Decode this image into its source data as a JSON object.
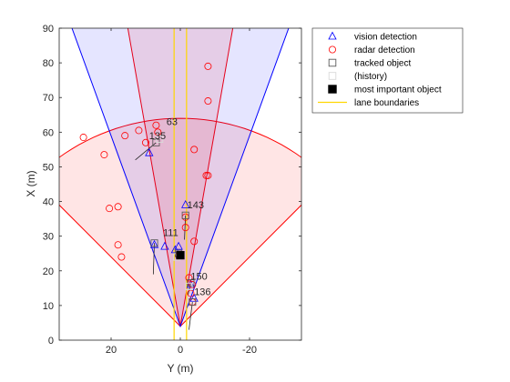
{
  "chart_data": {
    "type": "scatter",
    "xlabel": "Y (m)",
    "ylabel": "X (m)",
    "xlim": [
      35,
      -35
    ],
    "ylim": [
      0,
      90
    ],
    "x_axis_direction": "reversed",
    "xticks": [
      20,
      0,
      -20
    ],
    "xtick_labels": [
      "20",
      "0",
      "-20"
    ],
    "yticks": [
      0,
      10,
      20,
      30,
      40,
      50,
      60,
      70,
      80,
      90
    ],
    "ytick_labels": [
      "0",
      "10",
      "20",
      "30",
      "40",
      "50",
      "60",
      "70",
      "80",
      "90"
    ],
    "grid": false,
    "legend_position": "outside-top-right",
    "sensor_origin": [
      0,
      4
    ],
    "coverage_areas": [
      {
        "sensor": "radar",
        "half_angle_deg": 45,
        "range": 60,
        "color": "#ff0000"
      },
      {
        "sensor": "radar",
        "half_angle_deg": 10,
        "range": 100,
        "color": "#ff0000"
      },
      {
        "sensor": "vision",
        "half_angle_deg": 20,
        "range": 100,
        "color": "#0000ff"
      }
    ],
    "lane_boundaries": [
      {
        "y": 1.8,
        "x_range": [
          0,
          90
        ]
      },
      {
        "y": -1.8,
        "x_range": [
          0,
          90
        ]
      }
    ],
    "series": [
      {
        "name": "vision detection",
        "marker": "triangle",
        "color": "#0000ff",
        "points": [
          [
            9,
            54
          ],
          [
            -1.5,
            39
          ],
          [
            0.5,
            27
          ],
          [
            4.5,
            27
          ],
          [
            1.5,
            26
          ],
          [
            7.5,
            27.5
          ],
          [
            -3,
            16
          ],
          [
            -4,
            12
          ]
        ]
      },
      {
        "name": "radar detection",
        "marker": "circle",
        "color": "#ff0000",
        "points": [
          [
            28,
            58.5
          ],
          [
            22,
            53.5
          ],
          [
            16,
            59
          ],
          [
            12,
            60.5
          ],
          [
            10,
            57
          ],
          [
            7,
            62
          ],
          [
            6.5,
            60
          ],
          [
            -8,
            79
          ],
          [
            -8,
            69
          ],
          [
            -4,
            55
          ],
          [
            -7.5,
            47.5
          ],
          [
            -8,
            47.5
          ],
          [
            20.5,
            38
          ],
          [
            18,
            38.5
          ],
          [
            -1.5,
            35.5
          ],
          [
            -1.5,
            32.5
          ],
          [
            -4,
            28.5
          ],
          [
            18,
            27.5
          ],
          [
            17,
            24
          ],
          [
            0.5,
            24.5
          ],
          [
            -2.5,
            18
          ],
          [
            -3.5,
            16
          ],
          [
            -3,
            13.5
          ],
          [
            -3.5,
            11
          ]
        ]
      },
      {
        "name": "tracked object",
        "marker": "square",
        "color": "#5a5a5a",
        "points": [
          [
            7,
            57
          ],
          [
            -1.5,
            36
          ],
          [
            7.5,
            28
          ],
          [
            0.5,
            25
          ],
          [
            -3,
            16.5
          ],
          [
            -3.5,
            11
          ]
        ],
        "labels": [
          "135",
          "143",
          "111",
          "",
          "150",
          "136"
        ]
      },
      {
        "name": "(history)",
        "marker": "square",
        "color": "#d9d9d9",
        "points": [
          [
            6,
            58
          ],
          [
            1,
            24
          ],
          [
            -2.5,
            15.5
          ]
        ]
      },
      {
        "name": "most important object",
        "marker": "filled-square",
        "color": "#000000",
        "points": [
          [
            0,
            24.5
          ]
        ]
      },
      {
        "name": "lane boundaries",
        "marker": "line",
        "color": "#ffd700"
      }
    ],
    "annotations": [
      "63",
      "135",
      "143",
      "111",
      "150",
      "136"
    ],
    "annotation_points": [
      [
        4,
        62
      ],
      [
        9,
        58
      ],
      [
        -2,
        38
      ],
      [
        5,
        30
      ],
      [
        -3,
        17.5
      ],
      [
        -4,
        13
      ]
    ]
  }
}
